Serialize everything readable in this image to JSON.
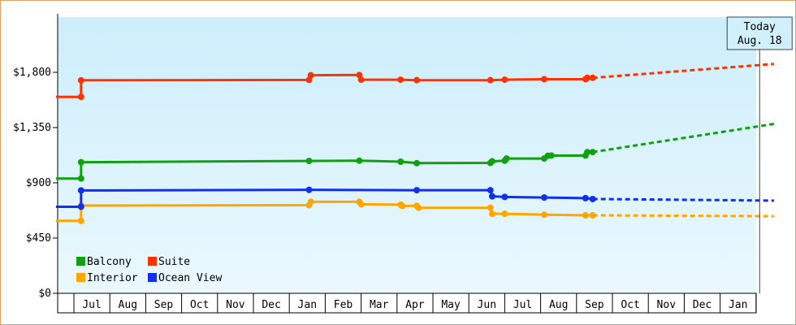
{
  "chart_data": {
    "type": "line",
    "ylim": [
      0,
      2250
    ],
    "yticks": [
      0,
      450,
      900,
      1350,
      1800
    ],
    "ytick_labels": [
      "$0",
      "$450",
      "$900",
      "$1,350",
      "$1,800"
    ],
    "month_labels": [
      "Jul",
      "Aug",
      "Sep",
      "Oct",
      "Nov",
      "Dec",
      "Jan",
      "Feb",
      "Mar",
      "Apr",
      "May",
      "Jun",
      "Jul",
      "Aug",
      "Sep",
      "Oct",
      "Nov",
      "Dec",
      "Jan"
    ],
    "today_marker": {
      "line1": "Today",
      "line2": "Aug. 18",
      "x": 19.1
    },
    "grid": false,
    "legend_position": "bottom-left",
    "series": [
      {
        "name": "Balcony",
        "color": "#11a011",
        "points": [
          [
            -0.5,
            935
          ],
          [
            0.2,
            935
          ],
          [
            0.2,
            1068
          ],
          [
            6.55,
            1078
          ],
          [
            7.95,
            1080
          ],
          [
            9.1,
            1072
          ],
          [
            9.55,
            1060
          ],
          [
            11.6,
            1062
          ],
          [
            11.65,
            1075
          ],
          [
            12.0,
            1080
          ],
          [
            12.05,
            1098
          ],
          [
            13.1,
            1098
          ],
          [
            13.2,
            1120
          ],
          [
            13.3,
            1122
          ],
          [
            14.25,
            1122
          ],
          [
            14.3,
            1150
          ],
          [
            14.45,
            1150
          ]
        ],
        "projection": [
          [
            14.45,
            1150
          ],
          [
            19.5,
            1380
          ]
        ]
      },
      {
        "name": "Interior",
        "color": "#ffa500",
        "points": [
          [
            -0.5,
            590
          ],
          [
            0.2,
            590
          ],
          [
            0.2,
            715
          ],
          [
            6.55,
            718
          ],
          [
            6.6,
            745
          ],
          [
            7.95,
            745
          ],
          [
            8.0,
            725
          ],
          [
            9.1,
            722
          ],
          [
            9.15,
            712
          ],
          [
            9.55,
            712
          ],
          [
            9.6,
            697
          ],
          [
            11.6,
            697
          ],
          [
            11.65,
            648
          ],
          [
            12.0,
            648
          ],
          [
            13.1,
            640
          ],
          [
            14.25,
            635
          ],
          [
            14.45,
            635
          ]
        ],
        "projection": [
          [
            14.45,
            635
          ],
          [
            19.5,
            628
          ]
        ]
      },
      {
        "name": "Ocean View",
        "color": "#1030ee",
        "points": [
          [
            -0.5,
            705
          ],
          [
            0.2,
            705
          ],
          [
            0.2,
            838
          ],
          [
            6.55,
            843
          ],
          [
            9.55,
            840
          ],
          [
            11.6,
            840
          ],
          [
            11.65,
            790
          ],
          [
            12.0,
            785
          ],
          [
            13.1,
            780
          ],
          [
            14.25,
            775
          ],
          [
            14.45,
            768
          ]
        ],
        "projection": [
          [
            14.45,
            768
          ],
          [
            19.5,
            755
          ]
        ]
      },
      {
        "name": "Suite",
        "color": "#ff3300",
        "points": [
          [
            -0.5,
            1600
          ],
          [
            0.2,
            1600
          ],
          [
            0.2,
            1735
          ],
          [
            6.55,
            1738
          ],
          [
            6.6,
            1776
          ],
          [
            7.95,
            1778
          ],
          [
            8.0,
            1740
          ],
          [
            9.1,
            1740
          ],
          [
            9.55,
            1736
          ],
          [
            11.6,
            1736
          ],
          [
            12.0,
            1740
          ],
          [
            13.1,
            1744
          ],
          [
            14.25,
            1744
          ],
          [
            14.3,
            1755
          ],
          [
            14.45,
            1755
          ]
        ],
        "projection": [
          [
            14.45,
            1755
          ],
          [
            19.5,
            1868
          ]
        ]
      }
    ]
  },
  "legend": [
    {
      "label": "Balcony",
      "color": "#11a011"
    },
    {
      "label": "Suite",
      "color": "#ff3300"
    },
    {
      "label": "Interior",
      "color": "#ffa500"
    },
    {
      "label": "Ocean View",
      "color": "#1030ee"
    }
  ]
}
